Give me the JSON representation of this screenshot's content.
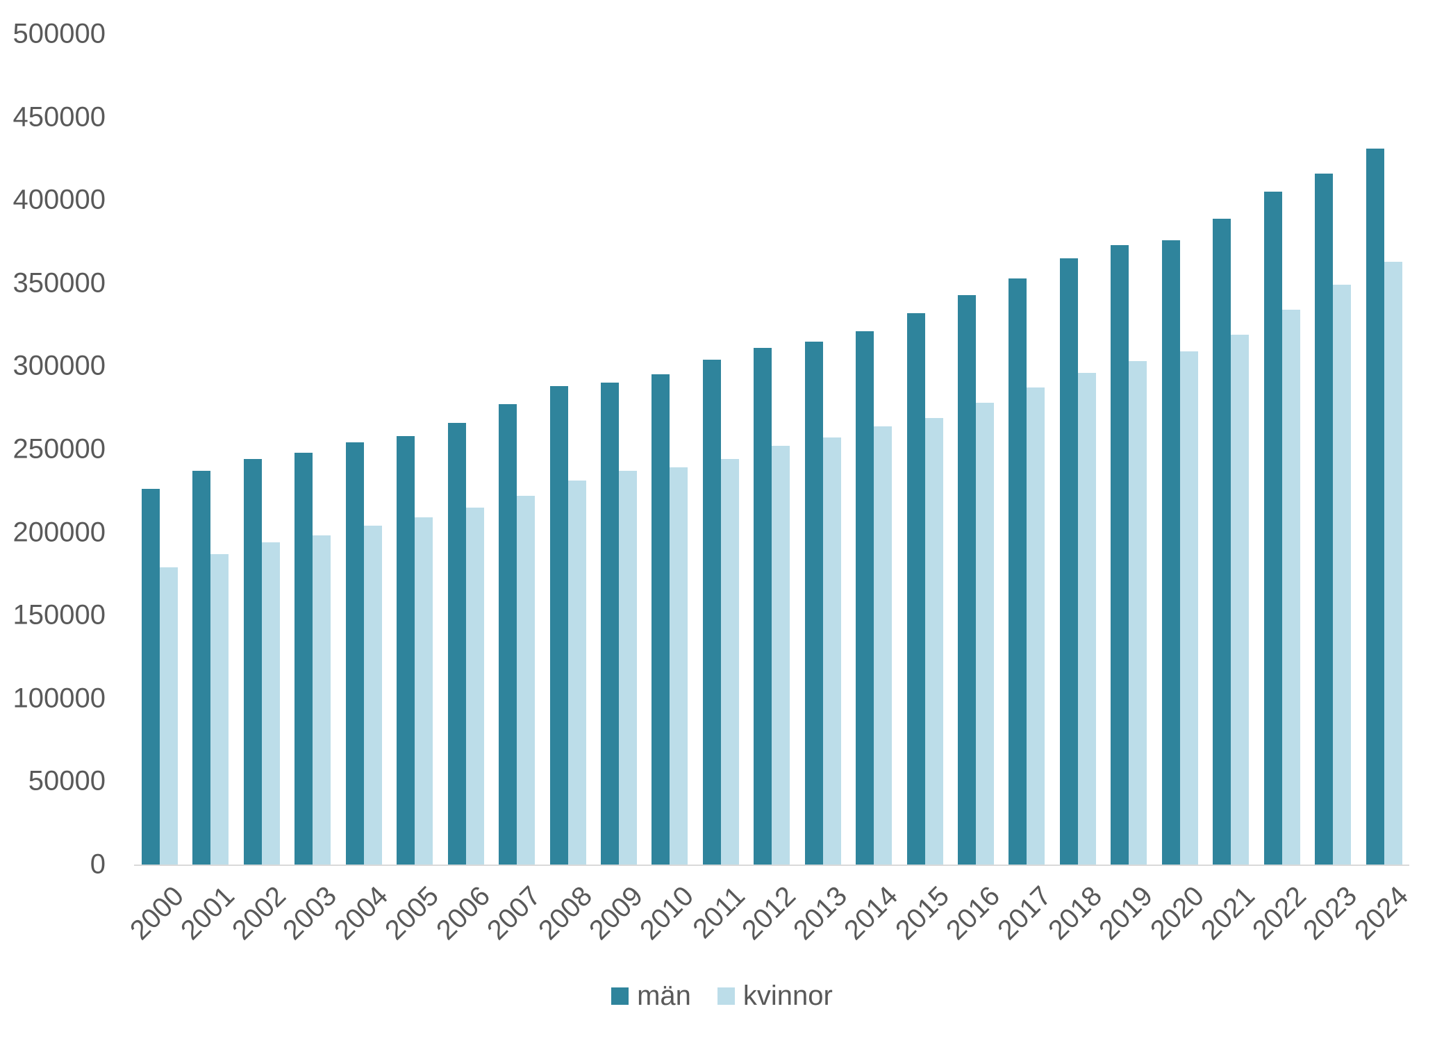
{
  "chart_data": {
    "type": "bar",
    "title": "",
    "xlabel": "",
    "ylabel": "",
    "categories": [
      "2000",
      "2001",
      "2002",
      "2003",
      "2004",
      "2005",
      "2006",
      "2007",
      "2008",
      "2009",
      "2010",
      "2011",
      "2012",
      "2013",
      "2014",
      "2015",
      "2016",
      "2017",
      "2018",
      "2019",
      "2020",
      "2021",
      "2022",
      "2023",
      "2024"
    ],
    "series": [
      {
        "name": "män",
        "color": "#2f849c",
        "values": [
          226000,
          237000,
          244000,
          248000,
          254000,
          258000,
          266000,
          277000,
          288000,
          290000,
          295000,
          304000,
          311000,
          315000,
          321000,
          332000,
          343000,
          353000,
          365000,
          373000,
          376000,
          389000,
          405000,
          416000,
          431000
        ]
      },
      {
        "name": "kvinnor",
        "color": "#bcdde9",
        "values": [
          179000,
          187000,
          194000,
          198000,
          204000,
          209000,
          215000,
          222000,
          231000,
          237000,
          239000,
          244000,
          252000,
          257000,
          264000,
          269000,
          278000,
          287000,
          296000,
          303000,
          309000,
          319000,
          334000,
          349000,
          363000
        ]
      }
    ],
    "ylim": [
      0,
      500000
    ],
    "yticks": [
      0,
      50000,
      100000,
      150000,
      200000,
      250000,
      300000,
      350000,
      400000,
      450000,
      500000
    ],
    "grid": false,
    "legend_position": "bottom",
    "axis_text_color": "#595959",
    "axis_line_color": "#d9d9d9"
  }
}
